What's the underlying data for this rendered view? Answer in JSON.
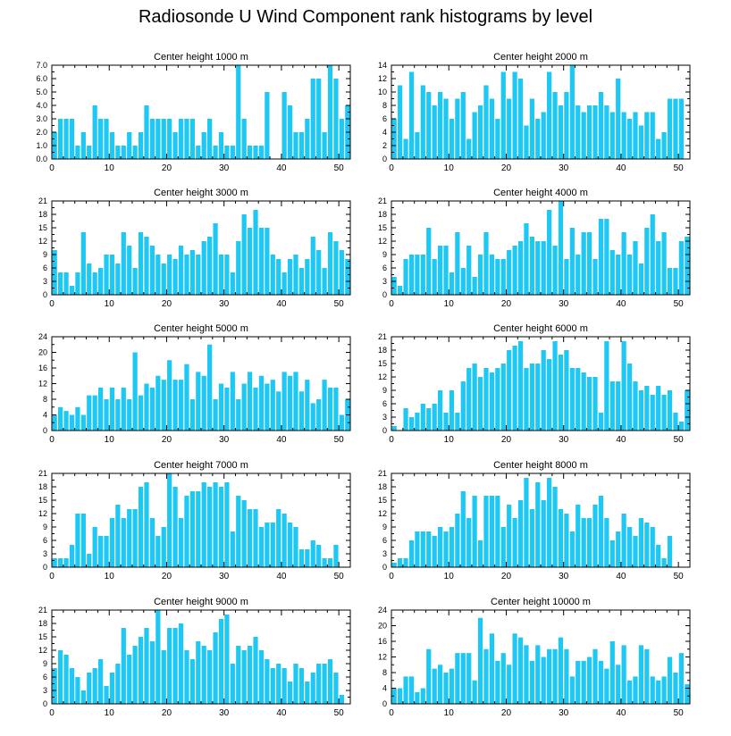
{
  "title": "Radiosonde U Wind Component rank histograms by level",
  "bar_color": "#1ec8f5",
  "chart_data": [
    {
      "type": "bar",
      "title": "Center height 1000 m",
      "x": [
        0,
        1,
        2,
        3,
        4,
        5,
        6,
        7,
        8,
        9,
        10,
        11,
        12,
        13,
        14,
        15,
        16,
        17,
        18,
        19,
        20,
        21,
        22,
        23,
        24,
        25,
        26,
        27,
        28,
        29,
        30,
        31,
        32,
        33,
        34,
        35,
        36,
        37,
        38,
        39,
        40,
        41,
        42,
        43,
        44,
        45,
        46,
        47,
        48,
        49,
        50,
        51
      ],
      "values": [
        2,
        3,
        3,
        3,
        1,
        2,
        1,
        4,
        3,
        3,
        2,
        1,
        1,
        2,
        1,
        2,
        4,
        3,
        3,
        3,
        3,
        2,
        3,
        3,
        3,
        1,
        2,
        3,
        1,
        2,
        1,
        1,
        7,
        3,
        1,
        1,
        1,
        5,
        0,
        0,
        5,
        4,
        2,
        2,
        3,
        6,
        6,
        2,
        7,
        6,
        3,
        4
      ],
      "xlim": [
        0,
        52
      ],
      "ylim": [
        0,
        7
      ],
      "yticks": [
        "0.0",
        "1.0",
        "2.0",
        "3.0",
        "4.0",
        "5.0",
        "6.0",
        "7.0"
      ],
      "xticks": [
        "0",
        "10",
        "20",
        "30",
        "40",
        "50"
      ]
    },
    {
      "type": "bar",
      "title": "Center height 2000 m",
      "x": [
        0,
        1,
        2,
        3,
        4,
        5,
        6,
        7,
        8,
        9,
        10,
        11,
        12,
        13,
        14,
        15,
        16,
        17,
        18,
        19,
        20,
        21,
        22,
        23,
        24,
        25,
        26,
        27,
        28,
        29,
        30,
        31,
        32,
        33,
        34,
        35,
        36,
        37,
        38,
        39,
        40,
        41,
        42,
        43,
        44,
        45,
        46,
        47,
        48,
        49,
        50,
        51
      ],
      "values": [
        6,
        11,
        3,
        13,
        4,
        11,
        10,
        8,
        10,
        9,
        6,
        9,
        10,
        3,
        7,
        8,
        11,
        9,
        6,
        13,
        9,
        13,
        12,
        5,
        9,
        6,
        7,
        13,
        10,
        8,
        10,
        14,
        8,
        7,
        8,
        8,
        10,
        8,
        7,
        12,
        7,
        6,
        7,
        5,
        7,
        7,
        3,
        4,
        9,
        9,
        9,
        0
      ],
      "xlim": [
        0,
        52
      ],
      "ylim": [
        0,
        14
      ],
      "yticks": [
        "0",
        "2",
        "4",
        "6",
        "8",
        "10",
        "12",
        "14"
      ],
      "xticks": [
        "0",
        "10",
        "20",
        "30",
        "40",
        "50"
      ]
    },
    {
      "type": "bar",
      "title": "Center height 3000 m",
      "x": [
        0,
        1,
        2,
        3,
        4,
        5,
        6,
        7,
        8,
        9,
        10,
        11,
        12,
        13,
        14,
        15,
        16,
        17,
        18,
        19,
        20,
        21,
        22,
        23,
        24,
        25,
        26,
        27,
        28,
        29,
        30,
        31,
        32,
        33,
        34,
        35,
        36,
        37,
        38,
        39,
        40,
        41,
        42,
        43,
        44,
        45,
        46,
        47,
        48,
        49,
        50,
        51
      ],
      "values": [
        10,
        5,
        5,
        2,
        5,
        14,
        7,
        5,
        6,
        9,
        9,
        7,
        14,
        11,
        6,
        14,
        13,
        11,
        9,
        7,
        9,
        8,
        11,
        9,
        10,
        9,
        12,
        13,
        16,
        9,
        9,
        5,
        12,
        18,
        15,
        19,
        15,
        15,
        9,
        8,
        5,
        8,
        9,
        6,
        8,
        13,
        10,
        6,
        14,
        12,
        10,
        8
      ],
      "xlim": [
        0,
        52
      ],
      "ylim": [
        0,
        21
      ],
      "yticks": [
        "0",
        "3",
        "6",
        "9",
        "12",
        "15",
        "18",
        "21"
      ],
      "xticks": [
        "0",
        "10",
        "20",
        "30",
        "40",
        "50"
      ]
    },
    {
      "type": "bar",
      "title": "Center height 4000 m",
      "x": [
        0,
        1,
        2,
        3,
        4,
        5,
        6,
        7,
        8,
        9,
        10,
        11,
        12,
        13,
        14,
        15,
        16,
        17,
        18,
        19,
        20,
        21,
        22,
        23,
        24,
        25,
        26,
        27,
        28,
        29,
        30,
        31,
        32,
        33,
        34,
        35,
        36,
        37,
        38,
        39,
        40,
        41,
        42,
        43,
        44,
        45,
        46,
        47,
        48,
        49,
        50,
        51
      ],
      "values": [
        4,
        2,
        8,
        9,
        9,
        9,
        15,
        8,
        11,
        11,
        5,
        14,
        6,
        11,
        4,
        9,
        14,
        9,
        8,
        8,
        10,
        11,
        12,
        16,
        13,
        12,
        12,
        19,
        11,
        21,
        8,
        15,
        9,
        14,
        14,
        8,
        17,
        17,
        10,
        9,
        14,
        9,
        12,
        7,
        15,
        18,
        12,
        14,
        6,
        6,
        12,
        13
      ],
      "xlim": [
        0,
        52
      ],
      "ylim": [
        0,
        21
      ],
      "yticks": [
        "0",
        "3",
        "6",
        "9",
        "12",
        "15",
        "18",
        "21"
      ],
      "xticks": [
        "0",
        "10",
        "20",
        "30",
        "40",
        "50"
      ]
    },
    {
      "type": "bar",
      "title": "Center height 5000 m",
      "x": [
        0,
        1,
        2,
        3,
        4,
        5,
        6,
        7,
        8,
        9,
        10,
        11,
        12,
        13,
        14,
        15,
        16,
        17,
        18,
        19,
        20,
        21,
        22,
        23,
        24,
        25,
        26,
        27,
        28,
        29,
        30,
        31,
        32,
        33,
        34,
        35,
        36,
        37,
        38,
        39,
        40,
        41,
        42,
        43,
        44,
        45,
        46,
        47,
        48,
        49,
        50,
        51
      ],
      "values": [
        4,
        6,
        5,
        4,
        6,
        4,
        9,
        9,
        11,
        8,
        11,
        8,
        11,
        8,
        20,
        9,
        12,
        11,
        14,
        13,
        18,
        13,
        13,
        17,
        8,
        15,
        14,
        22,
        8,
        12,
        11,
        15,
        8,
        12,
        15,
        11,
        14,
        12,
        13,
        10,
        15,
        14,
        15,
        10,
        13,
        7,
        8,
        13,
        11,
        11,
        4,
        8
      ],
      "xlim": [
        0,
        52
      ],
      "ylim": [
        0,
        24
      ],
      "yticks": [
        "0",
        "4",
        "8",
        "12",
        "16",
        "20",
        "24"
      ],
      "xticks": [
        "0",
        "10",
        "20",
        "30",
        "40",
        "50"
      ]
    },
    {
      "type": "bar",
      "title": "Center height 6000 m",
      "x": [
        0,
        1,
        2,
        3,
        4,
        5,
        6,
        7,
        8,
        9,
        10,
        11,
        12,
        13,
        14,
        15,
        16,
        17,
        18,
        19,
        20,
        21,
        22,
        23,
        24,
        25,
        26,
        27,
        28,
        29,
        30,
        31,
        32,
        33,
        34,
        35,
        36,
        37,
        38,
        39,
        40,
        41,
        42,
        43,
        44,
        45,
        46,
        47,
        48,
        49,
        50,
        51
      ],
      "values": [
        1,
        0,
        5,
        3,
        4,
        6,
        5,
        6,
        9,
        4,
        9,
        4,
        11,
        14,
        15,
        12,
        14,
        13,
        14,
        15,
        18,
        19,
        20,
        14,
        15,
        15,
        18,
        16,
        20,
        17,
        18,
        14,
        14,
        13,
        12,
        12,
        4,
        20,
        11,
        11,
        20,
        15,
        11,
        9,
        10,
        8,
        10,
        8,
        9,
        4,
        2,
        9
      ],
      "xlim": [
        0,
        52
      ],
      "ylim": [
        0,
        21
      ],
      "yticks": [
        "0",
        "3",
        "6",
        "9",
        "12",
        "15",
        "18",
        "21"
      ],
      "xticks": [
        "0",
        "10",
        "20",
        "30",
        "40",
        "50"
      ]
    },
    {
      "type": "bar",
      "title": "Center height 7000 m",
      "x": [
        0,
        1,
        2,
        3,
        4,
        5,
        6,
        7,
        8,
        9,
        10,
        11,
        12,
        13,
        14,
        15,
        16,
        17,
        18,
        19,
        20,
        21,
        22,
        23,
        24,
        25,
        26,
        27,
        28,
        29,
        30,
        31,
        32,
        33,
        34,
        35,
        36,
        37,
        38,
        39,
        40,
        41,
        42,
        43,
        44,
        45,
        46,
        47,
        48,
        49,
        50,
        51
      ],
      "values": [
        2,
        2,
        2,
        5,
        12,
        12,
        3,
        9,
        7,
        7,
        11,
        14,
        11,
        13,
        13,
        18,
        19,
        11,
        7,
        9,
        21,
        18,
        11,
        16,
        17,
        17,
        19,
        18,
        19,
        18,
        19,
        8,
        16,
        15,
        13,
        13,
        9,
        10,
        10,
        13,
        12,
        10,
        9,
        4,
        4,
        6,
        5,
        2,
        2,
        5,
        0,
        0
      ],
      "xlim": [
        0,
        52
      ],
      "ylim": [
        0,
        21
      ],
      "yticks": [
        "0",
        "3",
        "6",
        "9",
        "12",
        "15",
        "18",
        "21"
      ],
      "xticks": [
        "0",
        "10",
        "20",
        "30",
        "40",
        "50"
      ]
    },
    {
      "type": "bar",
      "title": "Center height 8000 m",
      "x": [
        0,
        1,
        2,
        3,
        4,
        5,
        6,
        7,
        8,
        9,
        10,
        11,
        12,
        13,
        14,
        15,
        16,
        17,
        18,
        19,
        20,
        21,
        22,
        23,
        24,
        25,
        26,
        27,
        28,
        29,
        30,
        31,
        32,
        33,
        34,
        35,
        36,
        37,
        38,
        39,
        40,
        41,
        42,
        43,
        44,
        45,
        46,
        47,
        48,
        49,
        50,
        51
      ],
      "values": [
        1,
        2,
        2,
        6,
        8,
        8,
        8,
        7,
        9,
        8,
        9,
        12,
        17,
        11,
        16,
        6,
        16,
        16,
        16,
        9,
        14,
        11,
        15,
        20,
        13,
        19,
        15,
        20,
        18,
        13,
        12,
        8,
        14,
        11,
        11,
        14,
        16,
        11,
        6,
        8,
        12,
        9,
        7,
        11,
        10,
        9,
        5,
        2,
        7,
        0,
        0,
        0
      ],
      "xlim": [
        0,
        52
      ],
      "ylim": [
        0,
        21
      ],
      "yticks": [
        "0",
        "3",
        "6",
        "9",
        "12",
        "15",
        "18",
        "21"
      ],
      "xticks": [
        "0",
        "10",
        "20",
        "30",
        "40",
        "50"
      ]
    },
    {
      "type": "bar",
      "title": "Center height 9000 m",
      "x": [
        0,
        1,
        2,
        3,
        4,
        5,
        6,
        7,
        8,
        9,
        10,
        11,
        12,
        13,
        14,
        15,
        16,
        17,
        18,
        19,
        20,
        21,
        22,
        23,
        24,
        25,
        26,
        27,
        28,
        29,
        30,
        31,
        32,
        33,
        34,
        35,
        36,
        37,
        38,
        39,
        40,
        41,
        42,
        43,
        44,
        45,
        46,
        47,
        48,
        49,
        50,
        51
      ],
      "values": [
        8,
        12,
        11,
        8,
        6,
        3,
        7,
        8,
        10,
        4,
        7,
        9,
        17,
        11,
        13,
        15,
        17,
        14,
        21,
        12,
        17,
        17,
        18,
        12,
        10,
        14,
        13,
        12,
        16,
        19,
        20,
        9,
        13,
        12,
        13,
        15,
        12,
        10,
        8,
        9,
        8,
        5,
        9,
        8,
        5,
        7,
        9,
        9,
        10,
        7,
        2,
        0
      ],
      "xlim": [
        0,
        52
      ],
      "ylim": [
        0,
        21
      ],
      "yticks": [
        "0",
        "3",
        "6",
        "9",
        "12",
        "15",
        "18",
        "21"
      ],
      "xticks": [
        "0",
        "10",
        "20",
        "30",
        "40",
        "50"
      ]
    },
    {
      "type": "bar",
      "title": "Center height 10000 m",
      "x": [
        0,
        1,
        2,
        3,
        4,
        5,
        6,
        7,
        8,
        9,
        10,
        11,
        12,
        13,
        14,
        15,
        16,
        17,
        18,
        19,
        20,
        21,
        22,
        23,
        24,
        25,
        26,
        27,
        28,
        29,
        30,
        31,
        32,
        33,
        34,
        35,
        36,
        37,
        38,
        39,
        40,
        41,
        42,
        43,
        44,
        45,
        46,
        47,
        48,
        49,
        50,
        51
      ],
      "values": [
        4,
        4,
        7,
        7,
        3,
        4,
        14,
        9,
        10,
        8,
        9,
        13,
        13,
        13,
        6,
        22,
        14,
        18,
        11,
        13,
        10,
        18,
        17,
        15,
        11,
        15,
        12,
        14,
        14,
        17,
        14,
        7,
        11,
        11,
        12,
        14,
        11,
        9,
        16,
        10,
        15,
        6,
        7,
        15,
        14,
        7,
        6,
        7,
        12,
        8,
        13,
        5
      ],
      "xlim": [
        0,
        52
      ],
      "ylim": [
        0,
        24
      ],
      "yticks": [
        "0",
        "4",
        "8",
        "12",
        "16",
        "20",
        "24"
      ],
      "xticks": [
        "0",
        "10",
        "20",
        "30",
        "40",
        "50"
      ]
    }
  ]
}
